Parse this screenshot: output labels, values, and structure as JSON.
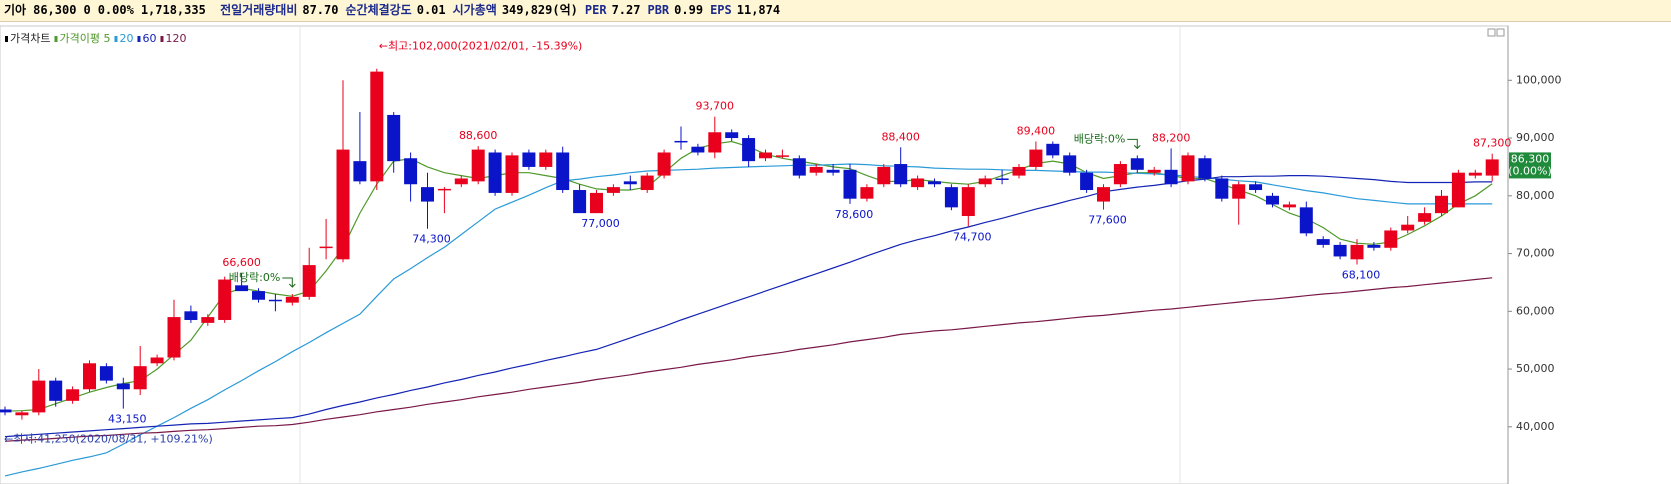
{
  "header": {
    "name": "기아",
    "price": "86,300",
    "change": "0",
    "change_rate": "0.00%",
    "volume": "1,718,335",
    "items": [
      {
        "label": "전일거래량대비",
        "value": "87.70"
      },
      {
        "label": "순간체결강도",
        "value": "0.01"
      },
      {
        "label": "시가총액",
        "value": "349,829(억)"
      },
      {
        "label": "PER",
        "value": "7.27"
      },
      {
        "label": "PBR",
        "value": "0.99"
      },
      {
        "label": "EPS",
        "value": "11,874"
      }
    ]
  },
  "chart_data": {
    "type": "candlestick",
    "name": "가격차트",
    "up_color": "#e8001c",
    "down_color": "#0a14c8",
    "open": [
      43000,
      42000,
      42500,
      48000,
      44500,
      46500,
      50500,
      47500,
      46500,
      51000,
      52000,
      60000,
      58000,
      58500,
      64500,
      63500,
      62000,
      61500,
      62500,
      71000,
      69000,
      86000,
      82500,
      94000,
      86500,
      81500,
      81000,
      82000,
      82500,
      87500,
      80500,
      87500,
      85000,
      87500,
      81000,
      77000,
      80500,
      82500,
      81000,
      83500,
      89500,
      88500,
      87500,
      91000,
      90000,
      86500,
      87000,
      86500,
      84000,
      84500,
      84500,
      79500,
      82000,
      85500,
      81500,
      82500,
      81500,
      76500,
      82000,
      83000,
      83500,
      85000,
      89000,
      87000,
      84000,
      79000,
      82000,
      86500,
      84000,
      84500,
      82500,
      86500,
      83000,
      79500,
      82000,
      80000,
      78000,
      78000,
      72500,
      71500,
      69000,
      71500,
      71000,
      74000,
      75500,
      77000,
      78000,
      83500,
      83500
    ],
    "high": [
      43500,
      42800,
      50000,
      48500,
      47000,
      51500,
      51000,
      48500,
      54000,
      52500,
      62000,
      61000,
      59500,
      66000,
      66600,
      64000,
      63000,
      63000,
      71000,
      76000,
      100000,
      94500,
      102000,
      94500,
      87500,
      84000,
      81500,
      83500,
      88600,
      88000,
      87500,
      88000,
      88000,
      88500,
      82000,
      81000,
      82000,
      83500,
      84000,
      88000,
      92000,
      89000,
      93700,
      91500,
      90500,
      88000,
      88000,
      87000,
      85500,
      85500,
      85500,
      82000,
      85500,
      88400,
      83500,
      83000,
      82000,
      82000,
      83500,
      84500,
      85500,
      89400,
      89400,
      87500,
      84500,
      82000,
      86000,
      87000,
      85000,
      88200,
      87500,
      87000,
      83500,
      82500,
      82500,
      80500,
      79000,
      79000,
      73000,
      72000,
      72500,
      72000,
      74500,
      76500,
      78000,
      81000,
      84500,
      84500,
      87300
    ],
    "low": [
      42000,
      41250,
      42000,
      43500,
      44000,
      46000,
      47500,
      43150,
      45500,
      50500,
      51500,
      58000,
      57500,
      58000,
      63500,
      61500,
      60000,
      61000,
      62000,
      69000,
      68500,
      82000,
      81000,
      84000,
      79000,
      74300,
      77000,
      81500,
      82000,
      80000,
      80000,
      84500,
      84500,
      80500,
      77500,
      77000,
      80000,
      81000,
      80500,
      83000,
      88000,
      87000,
      86500,
      89500,
      85000,
      86000,
      86500,
      83000,
      83500,
      83500,
      78600,
      79000,
      81500,
      81500,
      81000,
      81500,
      77500,
      74700,
      81500,
      82000,
      83000,
      84500,
      86500,
      83500,
      80500,
      77600,
      81500,
      84000,
      83500,
      81500,
      82000,
      82500,
      79000,
      75000,
      80500,
      78000,
      77500,
      73000,
      71000,
      69000,
      68100,
      70500,
      70500,
      73500,
      75000,
      76500,
      78000,
      83000,
      82500
    ],
    "close": [
      42500,
      42500,
      48000,
      44500,
      46500,
      51000,
      48000,
      46500,
      50500,
      52000,
      59000,
      58500,
      59000,
      65500,
      63500,
      62000,
      61800,
      62500,
      68000,
      71200,
      88000,
      82500,
      101500,
      86000,
      82000,
      79000,
      81200,
      83000,
      88000,
      80500,
      87000,
      85000,
      87500,
      81000,
      77000,
      80500,
      81500,
      82000,
      83500,
      87500,
      89300,
      87500,
      91000,
      90000,
      86000,
      87500,
      87000,
      83500,
      85000,
      84000,
      79500,
      81500,
      85000,
      82000,
      83000,
      82000,
      78000,
      81500,
      83000,
      82900,
      85000,
      88000,
      87000,
      84000,
      81000,
      81500,
      85500,
      84500,
      84500,
      82000,
      87000,
      83000,
      79500,
      82000,
      81000,
      78500,
      78500,
      73500,
      71500,
      69500,
      71500,
      71000,
      74000,
      75000,
      77000,
      80000,
      84000,
      84000,
      86300
    ],
    "high_labels": [
      null,
      null,
      null,
      null,
      null,
      null,
      null,
      null,
      null,
      null,
      null,
      null,
      null,
      null,
      "66,600",
      null,
      null,
      null,
      null,
      null,
      null,
      null,
      null,
      null,
      null,
      null,
      null,
      null,
      "88,600",
      null,
      null,
      null,
      null,
      null,
      null,
      null,
      null,
      null,
      null,
      null,
      null,
      null,
      "93,700",
      null,
      null,
      null,
      null,
      null,
      null,
      null,
      null,
      null,
      null,
      "88,400",
      null,
      null,
      null,
      null,
      null,
      null,
      null,
      "89,400",
      null,
      null,
      null,
      null,
      null,
      null,
      null,
      "88,200",
      null,
      null,
      null,
      null,
      null,
      null,
      null,
      null,
      null,
      null,
      null,
      null,
      null,
      null,
      null,
      null,
      null,
      null,
      "87,300"
    ],
    "low_labels": [
      null,
      null,
      null,
      null,
      null,
      null,
      null,
      "43,150",
      null,
      null,
      null,
      null,
      null,
      null,
      null,
      null,
      null,
      null,
      null,
      null,
      null,
      null,
      null,
      null,
      null,
      "74,300",
      null,
      null,
      null,
      null,
      null,
      null,
      null,
      null,
      null,
      "77,000",
      null,
      null,
      null,
      null,
      null,
      null,
      null,
      null,
      null,
      null,
      null,
      null,
      null,
      null,
      "78,600",
      null,
      null,
      null,
      null,
      null,
      null,
      "74,700",
      null,
      null,
      null,
      null,
      null,
      null,
      null,
      "77,600",
      null,
      null,
      null,
      null,
      null,
      null,
      null,
      null,
      null,
      null,
      null,
      null,
      null,
      null,
      "68,100",
      null,
      null,
      null,
      null,
      null,
      null,
      null,
      null
    ],
    "event_labels": [
      null,
      null,
      null,
      null,
      null,
      null,
      null,
      null,
      null,
      null,
      null,
      null,
      null,
      null,
      null,
      null,
      null,
      "배당락:0%",
      null,
      null,
      null,
      null,
      null,
      null,
      null,
      null,
      null,
      null,
      null,
      null,
      null,
      null,
      null,
      null,
      null,
      null,
      null,
      null,
      null,
      null,
      null,
      null,
      null,
      null,
      null,
      null,
      null,
      null,
      null,
      null,
      null,
      null,
      null,
      null,
      null,
      null,
      null,
      null,
      null,
      null,
      null,
      null,
      null,
      null,
      null,
      null,
      null,
      "배당락:0%",
      null,
      null,
      null,
      null,
      null,
      null,
      null,
      null,
      null,
      null,
      null,
      null,
      null,
      null,
      null,
      null,
      null,
      null,
      null,
      null,
      null
    ],
    "max_annotation": "←최고:102,000(2021/02/01, -15.39%)",
    "min_annotation": "←최저:41,250(2020/08/31, +109.21%)",
    "series": [
      {
        "name": "가격이평 5",
        "color": "#4f9a2a",
        "values": [
          42700,
          42800,
          43000,
          44000,
          45000,
          46000,
          46800,
          47500,
          48000,
          50000,
          52500,
          55000,
          59000,
          63000,
          64000,
          63500,
          63000,
          62600,
          63500,
          67000,
          71000,
          77000,
          82000,
          86000,
          86400,
          85000,
          84000,
          83500,
          83000,
          83500,
          84000,
          84000,
          83500,
          83000,
          82000,
          81200,
          81000,
          81000,
          81500,
          84000,
          86500,
          88200,
          89000,
          89400,
          88500,
          87200,
          86500,
          86000,
          85500,
          85000,
          84700,
          83500,
          82500,
          82500,
          82800,
          82500,
          82200,
          82000,
          82500,
          83500,
          84500,
          85600,
          86000,
          85500,
          84000,
          83000,
          83500,
          84000,
          84000,
          83500,
          83000,
          83000,
          82000,
          81000,
          80000,
          78500,
          77000,
          76000,
          74500,
          72500,
          71800,
          71600,
          72000,
          73300,
          74800,
          76500,
          78600,
          80000,
          82100
        ]
      },
      {
        "name": "20",
        "color": "#2a9ad8",
        "values": [
          31500,
          32200,
          32800,
          33500,
          34200,
          34800,
          35500,
          37000,
          38600,
          40100,
          41600,
          43200,
          44700,
          46400,
          48000,
          49700,
          51300,
          53000,
          54600,
          56300,
          57900,
          59500,
          62600,
          65600,
          67400,
          69300,
          71100,
          73300,
          75500,
          77700,
          78900,
          80100,
          81400,
          82600,
          82900,
          83300,
          83600,
          84000,
          84300,
          84400,
          84500,
          84600,
          84800,
          84900,
          85000,
          85100,
          85200,
          85300,
          85300,
          85400,
          85500,
          85400,
          85200,
          85100,
          85000,
          84800,
          84700,
          84600,
          84600,
          84500,
          84400,
          84400,
          84300,
          84200,
          84100,
          84100,
          84000,
          83900,
          83800,
          83600,
          83400,
          83100,
          82900,
          82600,
          82400,
          81900,
          81400,
          80900,
          80500,
          80000,
          79500,
          79200,
          78900,
          78600,
          78600,
          78600,
          78600,
          78600,
          78600
        ]
      },
      {
        "name": "60",
        "color": "#1424b4",
        "values": [
          38300,
          38500,
          38700,
          38900,
          39100,
          39300,
          39500,
          39700,
          39900,
          40100,
          40300,
          40500,
          40600,
          40800,
          41000,
          41200,
          41400,
          41600,
          42200,
          43000,
          43700,
          44300,
          45000,
          45600,
          46300,
          46900,
          47600,
          48200,
          48900,
          49500,
          50200,
          50800,
          51500,
          52100,
          52800,
          53400,
          54400,
          55400,
          56400,
          57400,
          58500,
          59500,
          60500,
          61500,
          62500,
          63500,
          64500,
          65500,
          66500,
          67500,
          68500,
          69600,
          70600,
          71600,
          72400,
          73100,
          73900,
          74600,
          75400,
          76100,
          76900,
          77700,
          78400,
          79200,
          79900,
          80700,
          81100,
          81500,
          81800,
          82200,
          82600,
          82900,
          83300,
          83300,
          83400,
          83400,
          83500,
          83500,
          83400,
          83200,
          83000,
          82800,
          82500,
          82300,
          82300,
          82300,
          82300,
          82400,
          82400
        ]
      },
      {
        "name": "120",
        "color": "#7a1848",
        "values": [
          37500,
          37700,
          37800,
          38000,
          38200,
          38400,
          38500,
          38700,
          38900,
          39000,
          39200,
          39400,
          39500,
          39700,
          39900,
          40100,
          40200,
          40400,
          40800,
          41300,
          41700,
          42100,
          42600,
          43000,
          43400,
          43900,
          44300,
          44700,
          45200,
          45600,
          46000,
          46500,
          46900,
          47300,
          47700,
          48200,
          48600,
          49000,
          49500,
          49900,
          50300,
          50800,
          51200,
          51600,
          52100,
          52500,
          52900,
          53400,
          53800,
          54200,
          54700,
          55100,
          55500,
          56000,
          56300,
          56600,
          56800,
          57100,
          57400,
          57700,
          58000,
          58200,
          58500,
          58800,
          59100,
          59300,
          59600,
          59900,
          60200,
          60400,
          60700,
          61000,
          61300,
          61600,
          61900,
          62100,
          62400,
          62700,
          63000,
          63200,
          63500,
          63800,
          64100,
          64300,
          64600,
          64900,
          65200,
          65500,
          65800
        ]
      }
    ],
    "ylim": [
      30100,
      109400
    ],
    "yticks": [
      {
        "value": 40000,
        "label": "40,000"
      },
      {
        "value": 50000,
        "label": "50,000"
      },
      {
        "value": 60000,
        "label": "60,000"
      },
      {
        "value": 70000,
        "label": "70,000"
      },
      {
        "value": 80000,
        "label": "80,000"
      },
      {
        "value": 90000,
        "label": "90,000"
      },
      {
        "value": 100000,
        "label": "100,000"
      }
    ],
    "price_tag": {
      "value": 86300,
      "label": "86,300",
      "change": "(0.00%)"
    }
  }
}
